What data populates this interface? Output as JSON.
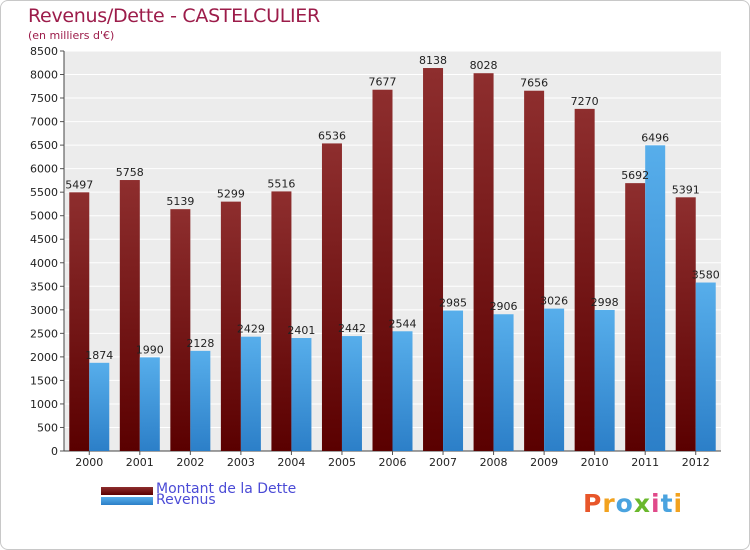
{
  "title": "Revenus/Dette - CASTELCULIER",
  "subtitle": "(en milliers d'€)",
  "logo": {
    "letters": [
      "P",
      "r",
      "o",
      "x",
      "i",
      "t",
      "i"
    ],
    "colors": [
      "#e8562a",
      "#f2a21e",
      "#4aa3df",
      "#6ab82c",
      "#e04a8a",
      "#4aa3df",
      "#f2a21e"
    ]
  },
  "chart_data": {
    "type": "bar",
    "title": "Revenus/Dette - CASTELCULIER",
    "ylabel": "(en milliers d'€)",
    "xlabel": "",
    "categories": [
      "2000",
      "2001",
      "2002",
      "2003",
      "2004",
      "2005",
      "2006",
      "2007",
      "2008",
      "2009",
      "2010",
      "2011",
      "2012"
    ],
    "ylim": [
      0,
      8500
    ],
    "yticks": [
      0,
      500,
      1000,
      1500,
      2000,
      2500,
      3000,
      3500,
      4000,
      4500,
      5000,
      5500,
      6000,
      6500,
      7000,
      7500,
      8000,
      8500
    ],
    "grid": true,
    "legend_position": "bottom-left",
    "series": [
      {
        "name": "Montant de la Dette",
        "color": "#7a1515",
        "values": [
          5497,
          5758,
          5139,
          5299,
          5516,
          6536,
          7677,
          8138,
          8028,
          7656,
          7270,
          5692,
          5391
        ]
      },
      {
        "name": "Revenus",
        "color": "#3f9ce0",
        "values": [
          1874,
          1990,
          2128,
          2429,
          2401,
          2442,
          2544,
          2985,
          2906,
          3026,
          2998,
          6496,
          3580
        ]
      }
    ]
  }
}
